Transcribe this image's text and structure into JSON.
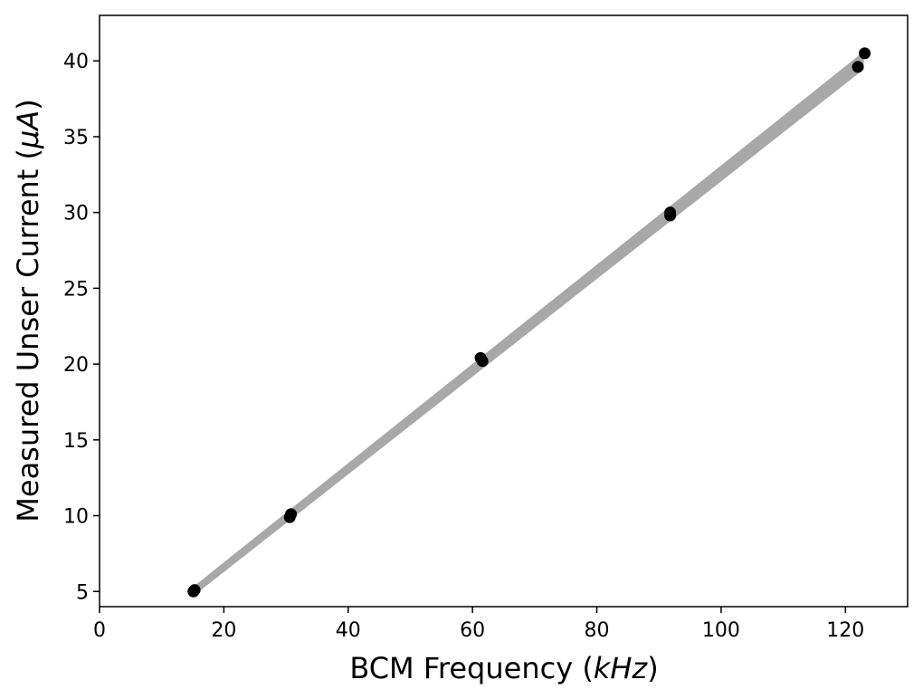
{
  "chart_data": {
    "type": "scatter",
    "title": "",
    "xlabel_main": "BCM Frequency (",
    "xlabel_unit": "kHz",
    "xlabel_close": ")",
    "ylabel_main": "Measured Unser Current (",
    "ylabel_unit": "μA",
    "ylabel_close": ")",
    "xlim": [
      0,
      130
    ],
    "ylim": [
      4,
      43
    ],
    "xticks": [
      0,
      20,
      40,
      60,
      80,
      100,
      120
    ],
    "yticks": [
      5,
      10,
      15,
      20,
      25,
      30,
      35,
      40
    ],
    "grid": false,
    "legend": "none",
    "colors": {
      "points": "#000000",
      "fit_band": "#a8a8a8",
      "frame": "#000000"
    },
    "series": [
      {
        "type": "scatter",
        "points": [
          {
            "x": 15.1,
            "y": 5.0
          },
          {
            "x": 15.3,
            "y": 5.1
          },
          {
            "x": 30.6,
            "y": 9.9
          },
          {
            "x": 30.8,
            "y": 10.1
          },
          {
            "x": 61.3,
            "y": 20.4
          },
          {
            "x": 61.6,
            "y": 20.2
          },
          {
            "x": 91.8,
            "y": 29.8
          },
          {
            "x": 91.8,
            "y": 30.0
          },
          {
            "x": 122.0,
            "y": 39.6
          },
          {
            "x": 123.1,
            "y": 40.5
          }
        ]
      },
      {
        "type": "fit-band",
        "x_start": 15.3,
        "x_end": 122.7,
        "lower_start": 4.9,
        "upper_start": 5.25,
        "lower_end": 39.5,
        "upper_end": 40.4
      }
    ]
  }
}
